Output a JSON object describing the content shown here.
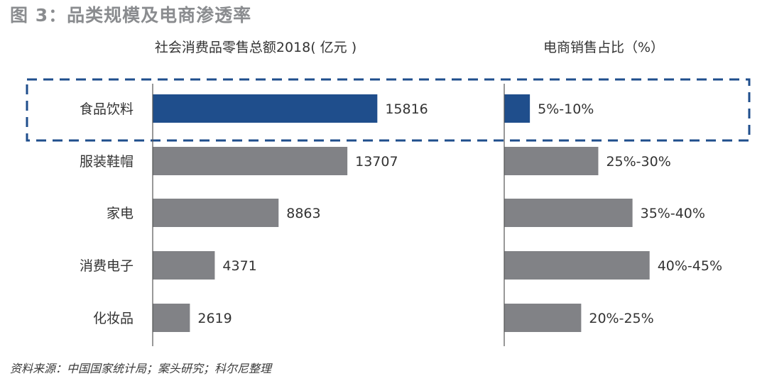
{
  "title": "图 3：品类规模及电商渗透率",
  "source": "资料来源：中国国家统计局；案头研究；科尔尼整理",
  "colors": {
    "highlight": "#1f4e8c",
    "bar": "#818286",
    "axis": "#555555",
    "dashed": "#1f4e8c"
  },
  "chart_data": [
    {
      "type": "bar",
      "orientation": "horizontal",
      "title": "社会消费品零售总额2018( 亿元 )",
      "categories": [
        "食品饮料",
        "服装鞋帽",
        "家电",
        "消费电子",
        "化妆品"
      ],
      "values": [
        15816,
        13707,
        8863,
        4371,
        2619
      ],
      "value_labels": [
        "15816",
        "13707",
        "8863",
        "4371",
        "2619"
      ],
      "highlighted_category": "食品饮料",
      "xlim": [
        0,
        23000
      ]
    },
    {
      "type": "bar",
      "orientation": "horizontal",
      "title": "电商销售占比（%）",
      "categories": [
        "食品饮料",
        "服装鞋帽",
        "家电",
        "消费电子",
        "化妆品"
      ],
      "ranges": [
        [
          5,
          10
        ],
        [
          25,
          30
        ],
        [
          35,
          40
        ],
        [
          40,
          45
        ],
        [
          20,
          25
        ]
      ],
      "values": [
        7.5,
        27.5,
        37.5,
        42.5,
        22.5
      ],
      "value_labels": [
        "5%-10%",
        "25%-30%",
        "35%-40%",
        "40%-45%",
        "20%-25%"
      ],
      "highlighted_category": "食品饮料",
      "xlim": [
        0,
        49
      ]
    }
  ]
}
